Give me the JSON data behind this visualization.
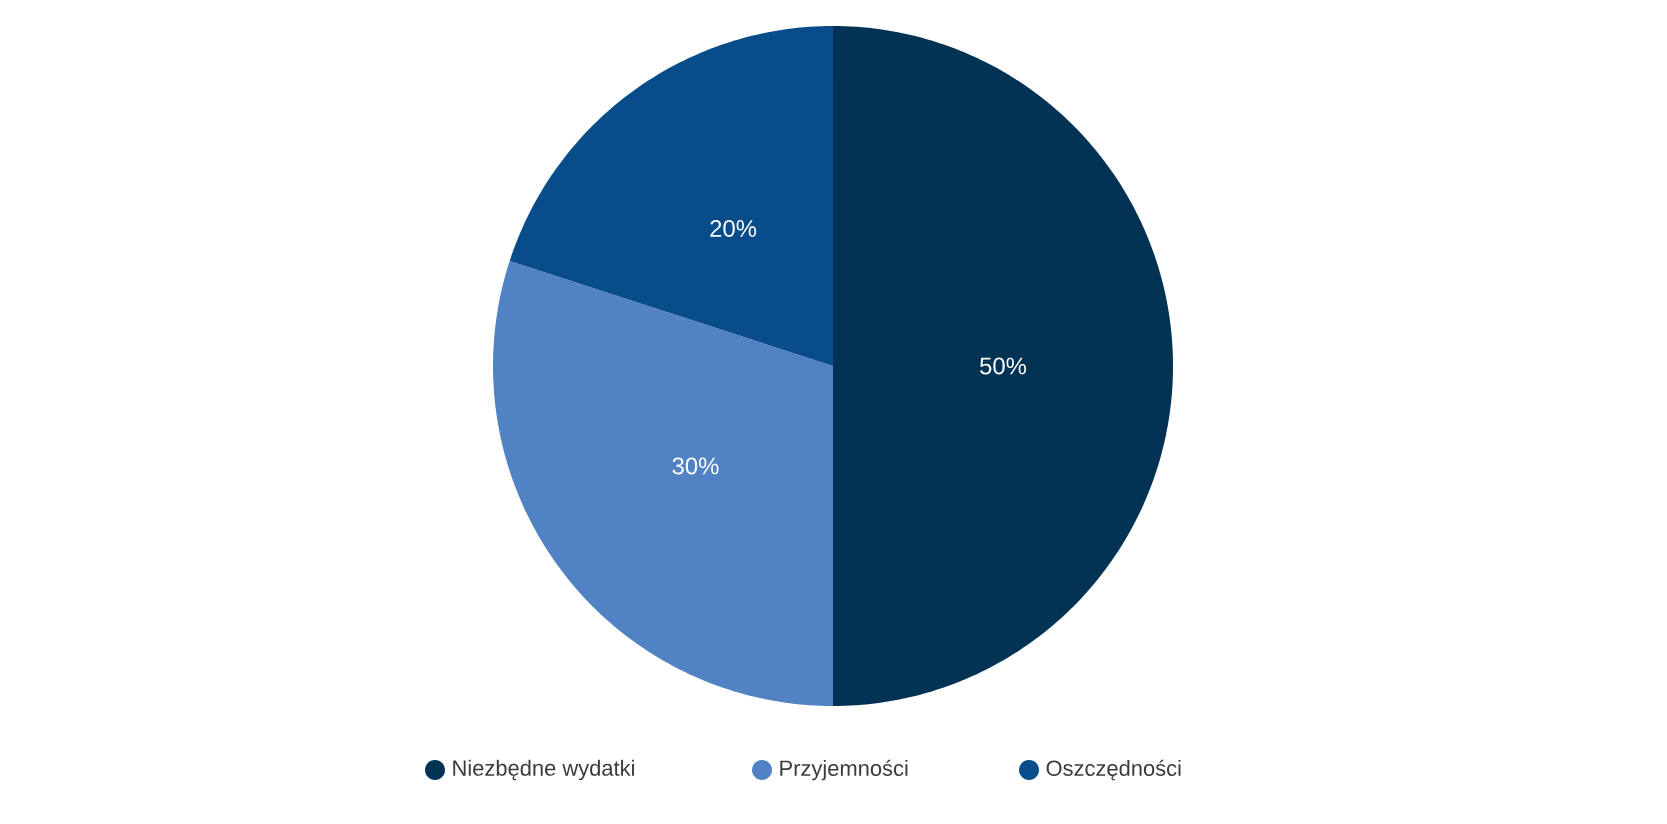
{
  "chart_data": {
    "type": "pie",
    "categories": [
      "Niezbędne wydatki",
      "Przyjemności",
      "Oszczędności"
    ],
    "values": [
      50,
      30,
      20
    ],
    "colors": [
      "#033354",
      "#5182c4",
      "#084c8a"
    ],
    "value_labels": [
      "50%",
      "30%",
      "20%"
    ],
    "legend": "bottom"
  }
}
